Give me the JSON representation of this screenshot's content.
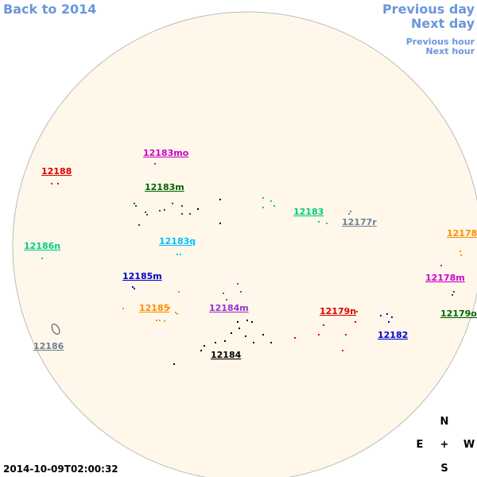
{
  "nav": {
    "back": "Back to 2014",
    "previous_day": "Previous day",
    "next_day": "Next day",
    "previous_hour": "Previous hour",
    "next_hour": "Next hour"
  },
  "regions": [
    {
      "label": "12183mo"
    },
    {
      "label": "12188"
    },
    {
      "label": "12183m"
    },
    {
      "label": "12183"
    },
    {
      "label": "12177r"
    },
    {
      "label": "12178"
    },
    {
      "label": "12186n"
    },
    {
      "label": "12183q"
    },
    {
      "label": "12185m"
    },
    {
      "label": "12178m"
    },
    {
      "label": "12185"
    },
    {
      "label": "12184m"
    },
    {
      "label": "12179n"
    },
    {
      "label": "12179o"
    },
    {
      "label": "12182"
    },
    {
      "label": "12186"
    },
    {
      "label": "12184"
    }
  ],
  "compass": {
    "north": "N",
    "east": "E",
    "center": "+",
    "west": "W",
    "south": "S"
  },
  "timestamp": "2014-10-09T02:00:32"
}
